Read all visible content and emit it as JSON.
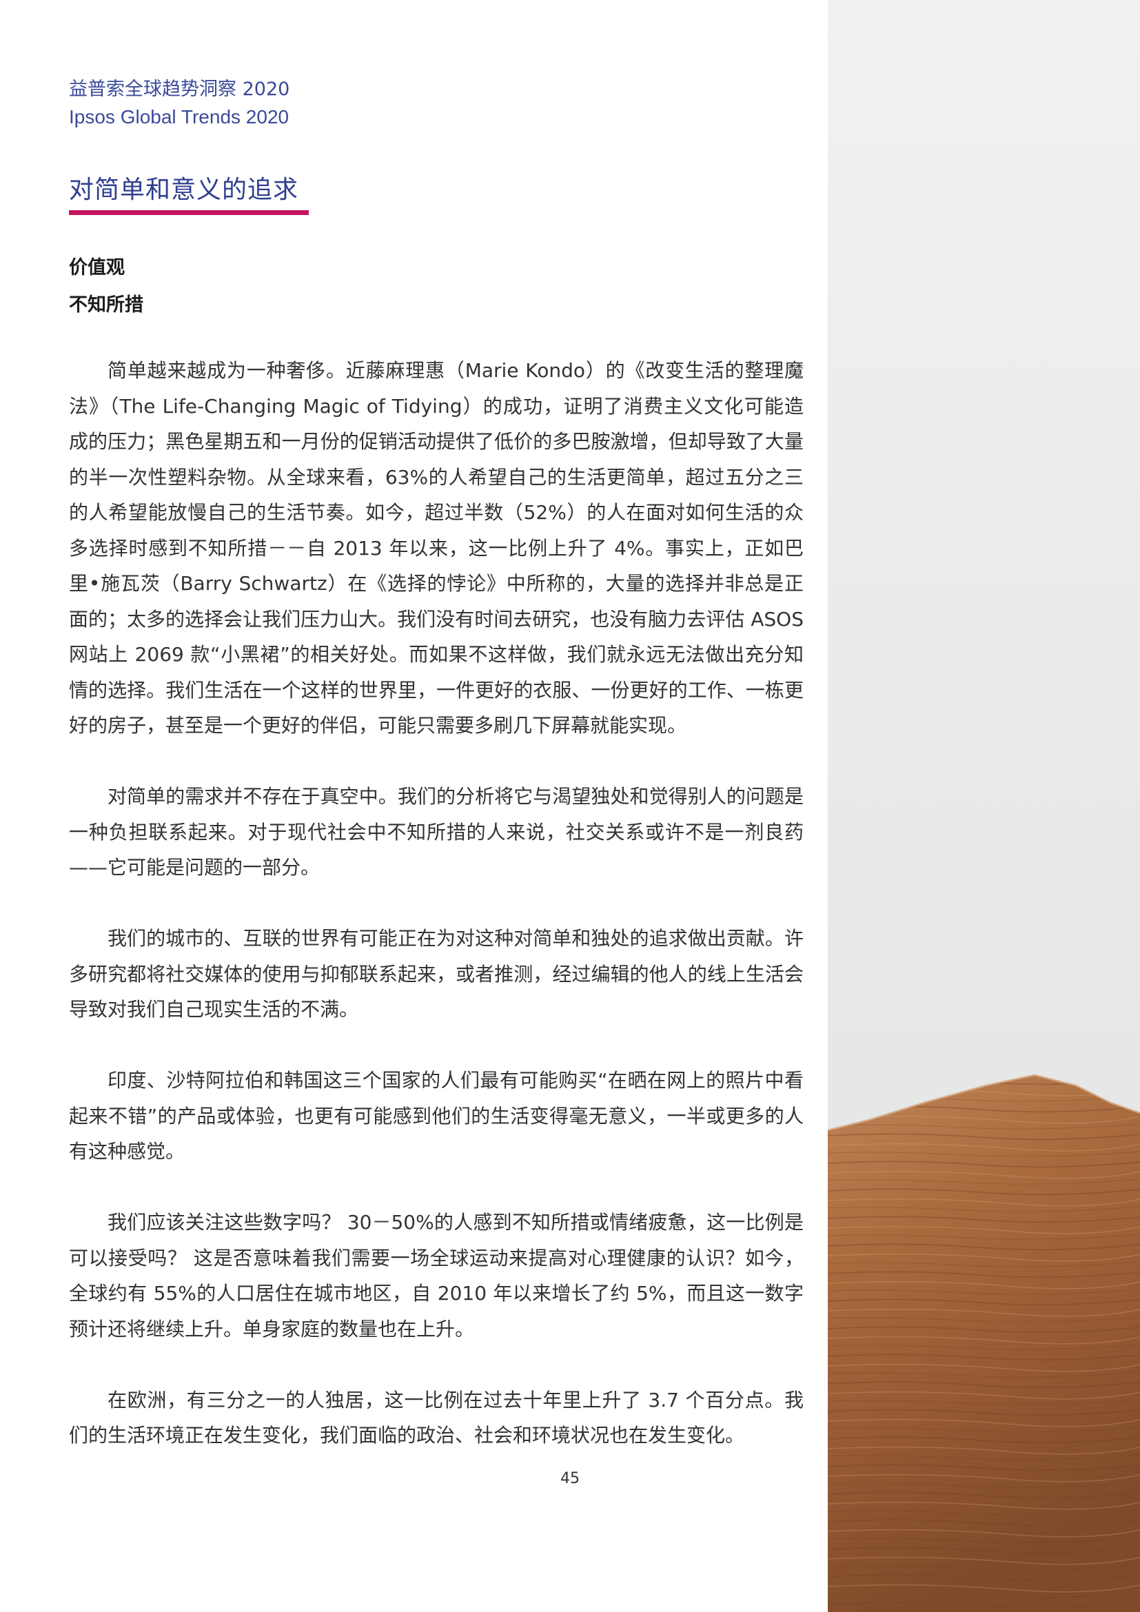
{
  "header": {
    "zh": "益普索全球趋势洞察 2020",
    "en": "Ipsos Global Trends 2020"
  },
  "title": "对简单和意义的追求",
  "subheadings": [
    "价值观",
    "不知所措"
  ],
  "paragraphs": [
    "简单越来越成为一种奢侈。近藤麻理惠（Marie Kondo）的《改变生活的整理魔法》（The Life-Changing Magic of Tidying）的成功，证明了消费主义文化可能造成的压力；黑色星期五和一月份的促销活动提供了低价的多巴胺激增，但却导致了大量的半一次性塑料杂物。从全球来看，63%的人希望自己的生活更简单，超过五分之三的人希望能放慢自己的生活节奏。如今，超过半数（52%）的人在面对如何生活的众多选择时感到不知所措－－自 2013 年以来，这一比例上升了 4%。事实上，正如巴里•施瓦茨（Barry Schwartz）在《选择的悖论》中所称的，大量的选择并非总是正面的；太多的选择会让我们压力山大。我们没有时间去研究，也没有脑力去评估 ASOS 网站上 2069 款“小黑裙”的相关好处。而如果不这样做，我们就永远无法做出充分知情的选择。我们生活在一个这样的世界里，一件更好的衣服、一份更好的工作、一栋更好的房子，甚至是一个更好的伴侣，可能只需要多刷几下屏幕就能实现。",
    "对简单的需求并不存在于真空中。我们的分析将它与渴望独处和觉得别人的问题是一种负担联系起来。对于现代社会中不知所措的人来说，社交关系或许不是一剂良药——它可能是问题的一部分。",
    "我们的城市的、互联的世界有可能正在为对这种对简单和独处的追求做出贡献。许多研究都将社交媒体的使用与抑郁联系起来，或者推测，经过编辑的他人的线上生活会导致对我们自己现实生活的不满。",
    "印度、沙特阿拉伯和韩国这三个国家的人们最有可能购买“在晒在网上的照片中看起来不错”的产品或体验，也更有可能感到他们的生活变得毫无意义，一半或更多的人有这种感觉。",
    "我们应该关注这些数字吗？ 30－50%的人感到不知所措或情绪疲惫，这一比例是可以接受吗？ 这是否意味着我们需要一场全球运动来提高对心理健康的认识？如今，全球约有 55%的人口居住在城市地区，自 2010 年以来增长了约 5%，而且这一数字预计还将继续上升。单身家庭的数量也在上升。",
    "在欧洲，有三分之一的人独居，这一比例在过去十年里上升了 3.7 个百分点。我们的生活环境正在发生变化，我们面临的政治、社会和环境状况也在发生变化。"
  ],
  "page_number": "45"
}
